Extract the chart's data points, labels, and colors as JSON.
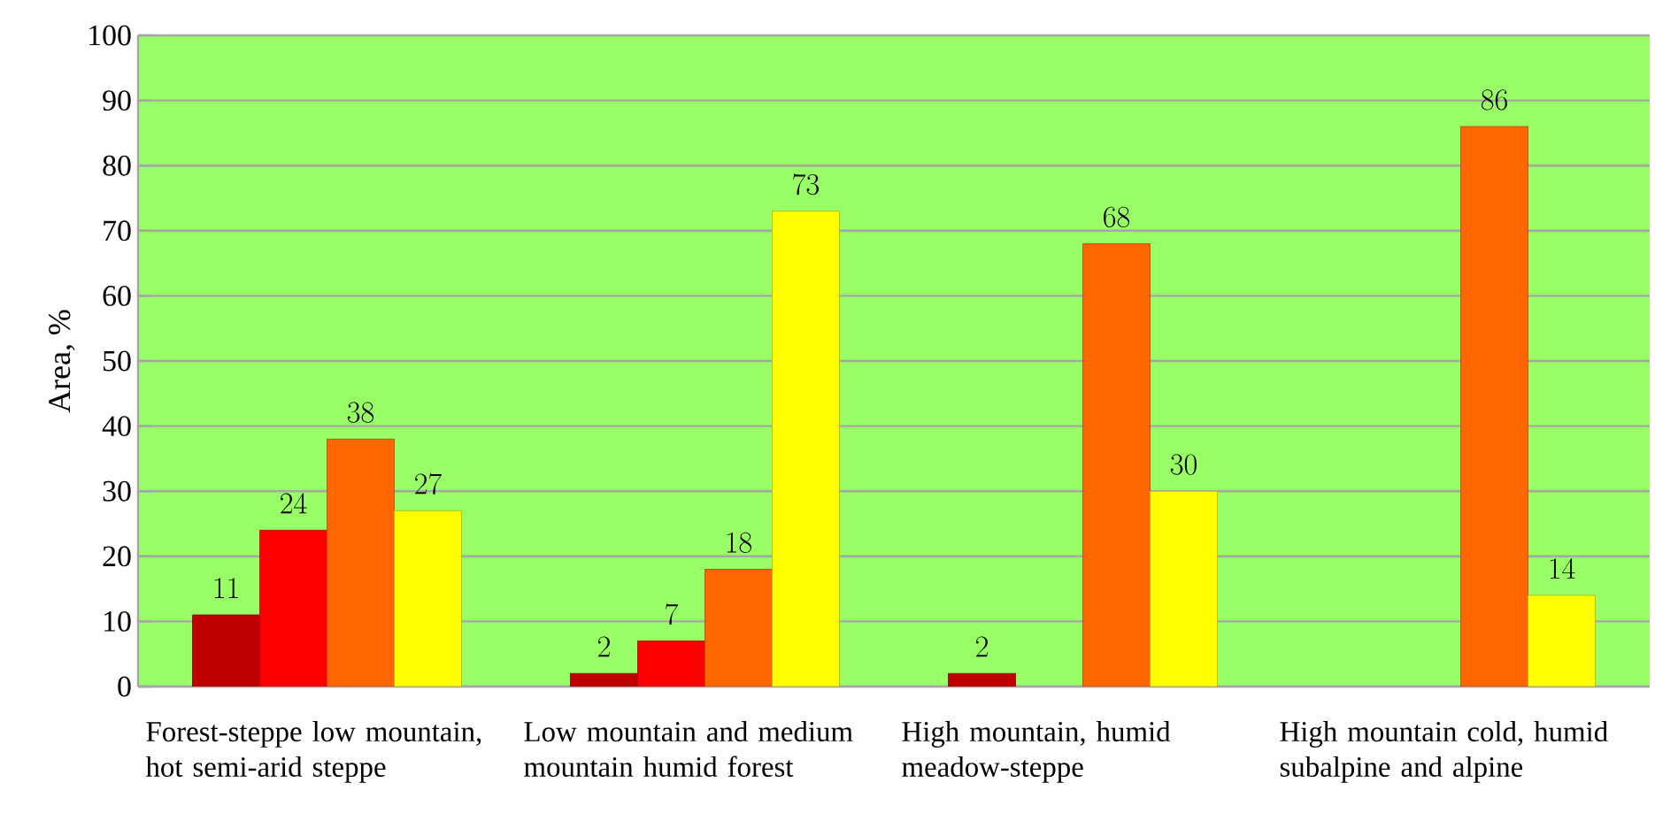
{
  "chart_data": {
    "type": "bar",
    "ylabel": "Area, %",
    "categories": [
      "Forest-steppe low mountain, hot semi-arid steppe",
      "Low mountain and medium mountain humid forest",
      "High mountain, humid meadow-steppe",
      "High mountain cold, humid subalpine and alpine"
    ],
    "series": [
      {
        "color": "#c00000",
        "values": [
          11,
          2,
          2,
          null
        ]
      },
      {
        "color": "#ff0000",
        "values": [
          24,
          7,
          null,
          null
        ]
      },
      {
        "color": "#ff6600",
        "values": [
          38,
          18,
          68,
          86
        ]
      },
      {
        "color": "#ffff00",
        "values": [
          27,
          73,
          30,
          14
        ]
      }
    ],
    "ylim": [
      0,
      100
    ],
    "yticks": [
      0,
      10,
      20,
      30,
      40,
      50,
      60,
      70,
      80,
      90,
      100
    ],
    "grid": "y",
    "data_labels": true
  }
}
